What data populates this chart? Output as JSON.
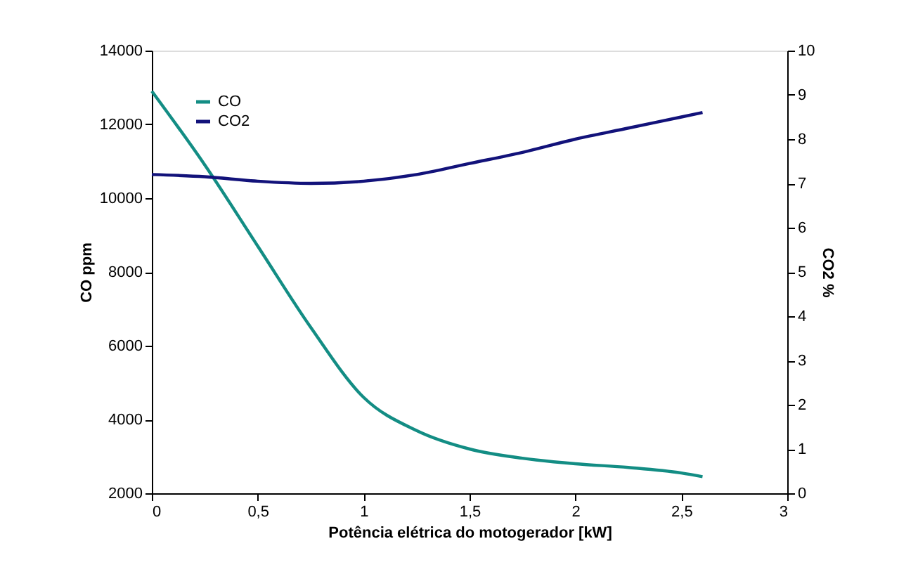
{
  "chart_data": {
    "type": "line",
    "xlabel": "Potência elétrica do motogerador [kW]",
    "ylabel": "CO ppm",
    "y2label": "CO2 %",
    "x": [
      0,
      0.25,
      0.5,
      0.75,
      1,
      1.25,
      1.5,
      1.75,
      2,
      2.25,
      2.5,
      2.6
    ],
    "series": [
      {
        "name": "CO",
        "color": "#138d84",
        "values": [
          12900,
          10900,
          8700,
          6500,
          4600,
          3700,
          3200,
          2950,
          2800,
          2700,
          2550,
          2450
        ]
      },
      {
        "name": "CO2",
        "color": "#12127a",
        "axis": "y2",
        "values": [
          7.2,
          7.15,
          7.05,
          7.0,
          7.05,
          7.2,
          7.45,
          7.7,
          8.0,
          8.25,
          8.5,
          8.6
        ]
      }
    ],
    "xlim": [
      0,
      3
    ],
    "xticks": [
      0,
      {
        "value": 0.5,
        "label": "0,5"
      },
      1,
      {
        "value": 1.5,
        "label": "1,5"
      },
      2,
      {
        "value": 2.5,
        "label": "2,5"
      },
      3
    ],
    "ylim": [
      2000,
      14000
    ],
    "yticks": [
      2000,
      4000,
      6000,
      8000,
      10000,
      12000,
      14000
    ],
    "y2lim": [
      0,
      10
    ],
    "y2ticks": [
      0,
      1,
      2,
      3,
      4,
      5,
      6,
      7,
      8,
      9,
      10
    ],
    "legend": "top left",
    "grid": false
  }
}
